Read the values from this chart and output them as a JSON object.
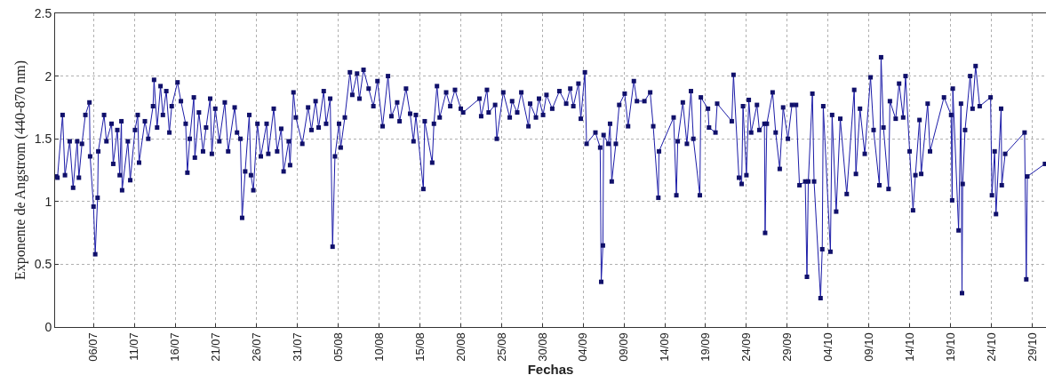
{
  "chart_data": {
    "type": "line",
    "xlabel": "Fechas",
    "ylabel": "Exponente de Angstrom (440-870 nm)",
    "marker": "square",
    "line_style": "solid",
    "grid": true,
    "xlim": [
      "--07-01T07:00",
      "--10-30T17:00"
    ],
    "ylim": [
      0,
      2.5
    ],
    "yticks": [
      0,
      0.5,
      1,
      1.5,
      2,
      2.5
    ],
    "xticks": [
      {
        "value": "--07-06",
        "label": "06/07"
      },
      {
        "value": "--07-11",
        "label": "11/07"
      },
      {
        "value": "--07-16",
        "label": "16/07"
      },
      {
        "value": "--07-21",
        "label": "21/07"
      },
      {
        "value": "--07-26",
        "label": "26/07"
      },
      {
        "value": "--07-31",
        "label": "31/07"
      },
      {
        "value": "--08-05",
        "label": "05/08"
      },
      {
        "value": "--08-10",
        "label": "10/08"
      },
      {
        "value": "--08-15",
        "label": "15/08"
      },
      {
        "value": "--08-20",
        "label": "20/08"
      },
      {
        "value": "--08-25",
        "label": "25/08"
      },
      {
        "value": "--08-30",
        "label": "30/08"
      },
      {
        "value": "--09-04",
        "label": "04/09"
      },
      {
        "value": "--09-09",
        "label": "09/09"
      },
      {
        "value": "--09-14",
        "label": "14/09"
      },
      {
        "value": "--09-19",
        "label": "19/09"
      },
      {
        "value": "--09-24",
        "label": "24/09"
      },
      {
        "value": "--09-29",
        "label": "29/09"
      },
      {
        "value": "--10-04",
        "label": "04/10"
      },
      {
        "value": "--10-09",
        "label": "09/10"
      },
      {
        "value": "--10-14",
        "label": "14/10"
      },
      {
        "value": "--10-19",
        "label": "19/10"
      },
      {
        "value": "--10-24",
        "label": "24/10"
      },
      {
        "value": "--10-29",
        "label": "29/10"
      }
    ],
    "series": [
      {
        "color": "#1c1ca8",
        "x": [
          "--07-01T10:00",
          "--07-01T14:00",
          "--07-02T05:00",
          "--07-02T12:00",
          "--07-03T02:00",
          "--07-03T12:00",
          "--07-04T00:00",
          "--07-04T05:00",
          "--07-04T14:00",
          "--07-05T00:00",
          "--07-05T12:00",
          "--07-05T14:00",
          "--07-06T00:00",
          "--07-06T05:00",
          "--07-06T12:00",
          "--07-06T14:00",
          "--07-07T07:00",
          "--07-07T14:00",
          "--07-08T05:00",
          "--07-08T10:00",
          "--07-08T22:00",
          "--07-09T05:00",
          "--07-09T10:00",
          "--07-09T12:00",
          "--07-10T05:00",
          "--07-10T12:00",
          "--07-11T02:00",
          "--07-11T10:00",
          "--07-11T14:00",
          "--07-12T07:00",
          "--07-12T17:00",
          "--07-13T07:00",
          "--07-13T10:00",
          "--07-13T19:00",
          "--07-14T05:00",
          "--07-14T12:00",
          "--07-14T22:00",
          "--07-15T07:00",
          "--07-15T14:00",
          "--07-16T07:00",
          "--07-16T17:00",
          "--07-17T07:00",
          "--07-17T12:00",
          "--07-17T19:00",
          "--07-18T07:00",
          "--07-18T10:00",
          "--07-18T22:00",
          "--07-19T10:00",
          "--07-19T19:00",
          "--07-20T07:00",
          "--07-20T12:00",
          "--07-20T22:00",
          "--07-21T10:00",
          "--07-22T02:00",
          "--07-22T12:00",
          "--07-23T07:00",
          "--07-23T14:00",
          "--07-24T00:00",
          "--07-24T05:00",
          "--07-24T14:00",
          "--07-25T02:00",
          "--07-25T07:00",
          "--07-25T14:00",
          "--07-26T02:00",
          "--07-26T12:00",
          "--07-27T05:00",
          "--07-27T10:00",
          "--07-28T02:00",
          "--07-28T12:00",
          "--07-29T00:00",
          "--07-29T07:00",
          "--07-29T22:00",
          "--07-30T02:00",
          "--07-30T12:00",
          "--07-30T19:00",
          "--07-31T14:00",
          "--08-01T07:00",
          "--08-01T17:00",
          "--08-02T05:00",
          "--08-02T14:00",
          "--08-03T05:00",
          "--08-03T12:00",
          "--08-04T00:00",
          "--08-04T07:00",
          "--08-04T14:00",
          "--08-05T02:00",
          "--08-05T07:00",
          "--08-05T19:00",
          "--08-06T10:00",
          "--08-06T17:00",
          "--08-07T07:00",
          "--08-07T14:00",
          "--08-08T02:00",
          "--08-08T17:00",
          "--08-09T07:00",
          "--08-09T19:00",
          "--08-10T10:00",
          "--08-11T02:00",
          "--08-11T12:00",
          "--08-12T05:00",
          "--08-12T12:00",
          "--08-13T07:00",
          "--08-13T19:00",
          "--08-14T05:00",
          "--08-14T12:00",
          "--08-15T10:00",
          "--08-15T14:00",
          "--08-16T12:00",
          "--08-16T17:00",
          "--08-17T02:00",
          "--08-17T10:00",
          "--08-18T05:00",
          "--08-18T17:00",
          "--08-19T07:00",
          "--08-20T00:00",
          "--08-20T07:00",
          "--08-22T07:00",
          "--08-22T12:00",
          "--08-23T05:00",
          "--08-23T10:00",
          "--08-24T05:00",
          "--08-24T10:00",
          "--08-25T05:00",
          "--08-26T00:00",
          "--08-26T07:00",
          "--08-26T22:00",
          "--08-27T10:00",
          "--08-28T07:00",
          "--08-28T12:00",
          "--08-29T05:00",
          "--08-29T14:00",
          "--08-30T02:00",
          "--08-30T12:00",
          "--08-31T05:00",
          "--09-01T02:00",
          "--09-01T22:00",
          "--09-02T10:00",
          "--09-02T19:00",
          "--09-03T10:00",
          "--09-03T17:00",
          "--09-04T05:00",
          "--09-04T10:00",
          "--09-05T12:00",
          "--09-06T02:00",
          "--09-06T05:00",
          "--09-06T10:00",
          "--09-06T12:00",
          "--09-07T02:00",
          "--09-07T07:00",
          "--09-07T12:00",
          "--09-08T00:00",
          "--09-08T10:00",
          "--09-09T02:00",
          "--09-09T12:00",
          "--09-10T05:00",
          "--09-10T14:00",
          "--09-11T12:00",
          "--09-12T05:00",
          "--09-12T14:00",
          "--09-13T05:00",
          "--09-13T07:00",
          "--09-15T02:00",
          "--09-15T10:00",
          "--09-15T14:00",
          "--09-16T05:00",
          "--09-16T17:00",
          "--09-17T05:00",
          "--09-17T12:00",
          "--09-18T07:00",
          "--09-18T10:00",
          "--09-19T07:00",
          "--09-19T10:00",
          "--09-20T05:00",
          "--09-20T10:00",
          "--09-22T05:00",
          "--09-22T10:00",
          "--09-23T02:00",
          "--09-23T10:00",
          "--09-23T14:00",
          "--09-24T00:00",
          "--09-24T07:00",
          "--09-24T14:00",
          "--09-25T07:00",
          "--09-25T14:00",
          "--09-26T05:00",
          "--09-26T07:00",
          "--09-26T12:00",
          "--09-27T05:00",
          "--09-27T14:00",
          "--09-28T02:00",
          "--09-28T12:00",
          "--09-29T02:00",
          "--09-29T14:00",
          "--09-30T02:00",
          "--09-30T12:00",
          "--10-01T05:00",
          "--10-01T10:00",
          "--10-01T14:00",
          "--10-02T02:00",
          "--10-02T07:00",
          "--10-03T02:00",
          "--10-03T07:00",
          "--10-03T10:00",
          "--10-04T07:00",
          "--10-04T12:00",
          "--10-05T00:00",
          "--10-05T12:00",
          "--10-06T07:00",
          "--10-07T05:00",
          "--10-07T10:00",
          "--10-07T22:00",
          "--10-08T12:00",
          "--10-09T05:00",
          "--10-09T14:00",
          "--10-10T07:00",
          "--10-10T12:00",
          "--10-10T19:00",
          "--10-11T10:00",
          "--10-11T14:00",
          "--10-12T07:00",
          "--10-12T17:00",
          "--10-13T05:00",
          "--10-13T12:00",
          "--10-14T00:00",
          "--10-14T10:00",
          "--10-14T17:00",
          "--10-15T05:00",
          "--10-15T10:00",
          "--10-16T05:00",
          "--10-16T12:00",
          "--10-18T05:00",
          "--10-19T02:00",
          "--10-19T05:00",
          "--10-19T07:00",
          "--10-20T00:00",
          "--10-20T07:00",
          "--10-20T10:00",
          "--10-20T12:00",
          "--10-20T19:00",
          "--10-21T10:00",
          "--10-21T17:00",
          "--10-22T02:00",
          "--10-22T14:00",
          "--10-23T22:00",
          "--10-24T02:00",
          "--10-24T10:00",
          "--10-24T14:00",
          "--10-25T05:00",
          "--10-25T07:00",
          "--10-25T17:00",
          "--10-28T02:00",
          "--10-28T07:00",
          "--10-28T10:00",
          "--10-30T14:00"
        ],
        "values": [
          1.2,
          1.19,
          1.69,
          1.21,
          1.48,
          1.11,
          1.48,
          1.19,
          1.46,
          1.69,
          1.79,
          1.36,
          0.96,
          0.58,
          1.03,
          1.4,
          1.69,
          1.48,
          1.62,
          1.3,
          1.57,
          1.21,
          1.64,
          1.09,
          1.48,
          1.17,
          1.57,
          1.69,
          1.31,
          1.64,
          1.5,
          1.76,
          1.97,
          1.59,
          1.92,
          1.69,
          1.88,
          1.55,
          1.76,
          1.95,
          1.8,
          1.62,
          1.23,
          1.5,
          1.83,
          1.35,
          1.71,
          1.4,
          1.59,
          1.82,
          1.38,
          1.74,
          1.48,
          1.79,
          1.4,
          1.75,
          1.55,
          1.5,
          0.87,
          1.24,
          1.69,
          1.21,
          1.09,
          1.62,
          1.36,
          1.62,
          1.38,
          1.74,
          1.4,
          1.58,
          1.24,
          1.48,
          1.29,
          1.87,
          1.67,
          1.46,
          1.75,
          1.57,
          1.8,
          1.59,
          1.88,
          1.62,
          1.82,
          0.64,
          1.36,
          1.62,
          1.43,
          1.67,
          2.03,
          1.85,
          2.02,
          1.82,
          2.05,
          1.9,
          1.76,
          1.96,
          1.6,
          2.0,
          1.68,
          1.79,
          1.64,
          1.9,
          1.7,
          1.48,
          1.69,
          1.1,
          1.64,
          1.31,
          1.62,
          1.92,
          1.67,
          1.87,
          1.76,
          1.89,
          1.74,
          1.71,
          1.82,
          1.68,
          1.89,
          1.71,
          1.77,
          1.5,
          1.87,
          1.67,
          1.8,
          1.71,
          1.87,
          1.6,
          1.78,
          1.67,
          1.82,
          1.69,
          1.85,
          1.74,
          1.88,
          1.78,
          1.9,
          1.76,
          1.94,
          1.66,
          2.03,
          1.46,
          1.55,
          1.43,
          0.36,
          0.65,
          1.53,
          1.46,
          1.62,
          1.16,
          1.46,
          1.77,
          1.86,
          1.6,
          1.96,
          1.8,
          1.8,
          1.87,
          1.6,
          1.03,
          1.4,
          1.67,
          1.05,
          1.48,
          1.79,
          1.46,
          1.88,
          1.5,
          1.05,
          1.83,
          1.74,
          1.59,
          1.55,
          1.78,
          1.64,
          2.01,
          1.19,
          1.14,
          1.76,
          1.21,
          1.81,
          1.55,
          1.77,
          1.57,
          1.62,
          0.75,
          1.62,
          1.87,
          1.55,
          1.26,
          1.75,
          1.5,
          1.77,
          1.77,
          1.13,
          1.16,
          0.4,
          1.16,
          1.86,
          1.16,
          0.23,
          0.62,
          1.76,
          0.6,
          1.69,
          0.92,
          1.66,
          1.06,
          1.89,
          1.22,
          1.74,
          1.38,
          1.99,
          1.57,
          1.13,
          2.15,
          1.59,
          1.1,
          1.8,
          1.66,
          1.94,
          1.67,
          2.0,
          1.4,
          0.93,
          1.21,
          1.65,
          1.22,
          1.78,
          1.4,
          1.83,
          1.69,
          1.01,
          1.9,
          0.77,
          1.78,
          0.27,
          1.14,
          1.57,
          2.0,
          1.74,
          2.08,
          1.76,
          1.83,
          1.05,
          1.4,
          0.9,
          1.74,
          1.13,
          1.38,
          1.55,
          0.38,
          1.2,
          1.3
        ]
      }
    ]
  }
}
